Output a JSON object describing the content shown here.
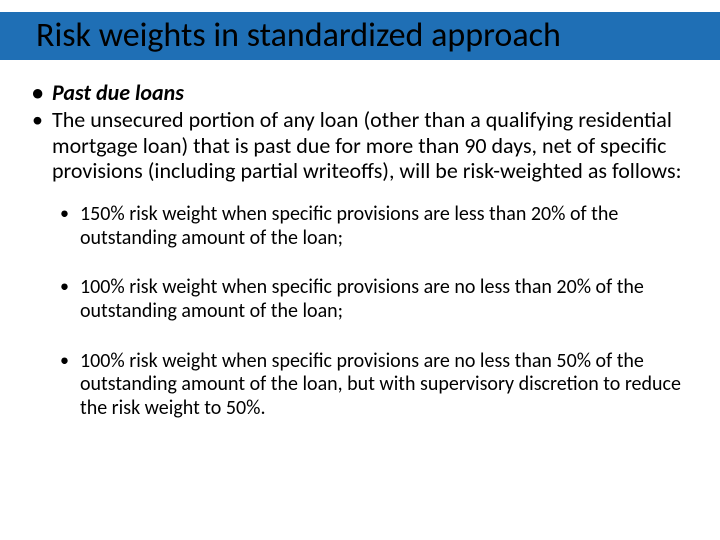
{
  "title_bar_color": "#1f6fb5",
  "title": "Risk weights in standardized approach",
  "bullets_level1": [
    {
      "text": "Past due loans",
      "bold": true
    },
    {
      "text": "The unsecured portion of any loan (other than a qualifying residential mortgage loan) that is past due for more than 90 days, net of specific provisions (including partial writeoffs), will be risk-weighted as follows:",
      "bold": false
    }
  ],
  "bullets_level2": [
    "150% risk weight when specific provisions are less than 20% of the outstanding amount of the loan;",
    "100% risk weight when specific provisions are no less than 20% of the outstanding amount of the loan;",
    "100% risk weight when specific provisions are no less than 50% of the outstanding amount of the loan, but with supervisory discretion to reduce the risk weight to 50%."
  ]
}
